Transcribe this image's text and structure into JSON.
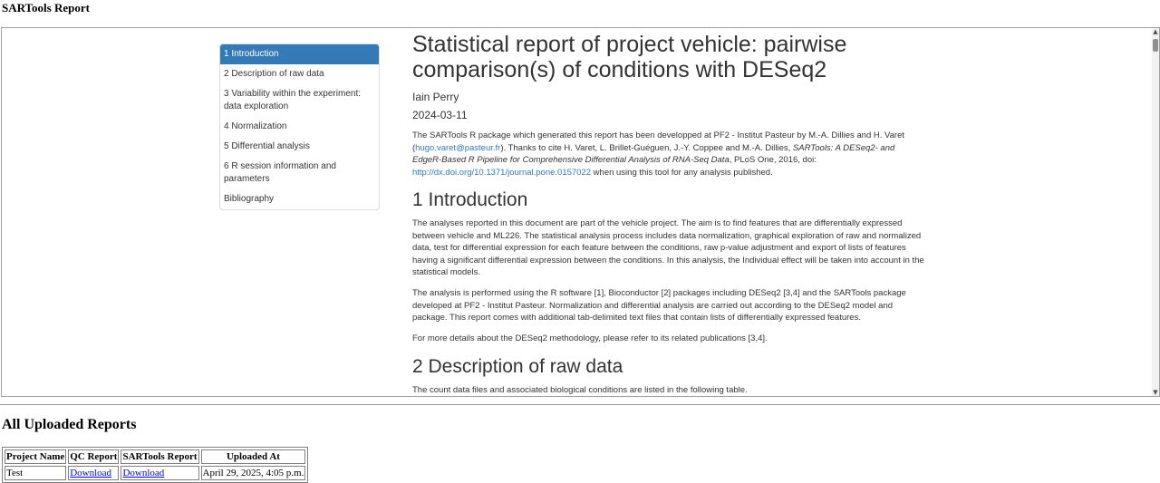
{
  "page": {
    "title": "SARTools Report"
  },
  "toc": {
    "items": [
      "1 Introduction",
      "2 Description of raw data",
      "3 Variability within the experiment: data exploration",
      "4 Normalization",
      "5 Differential analysis",
      "6 R session information and parameters",
      "Bibliography"
    ]
  },
  "report": {
    "title": "Statistical report of project vehicle: pairwise comparison(s) of conditions with DESeq2",
    "author": "Iain Perry",
    "date": "2024-03-11",
    "intro_p1": "The SARTools R package which generated this report has been developped at PF2 - Institut Pasteur by M.-A. Dillies and H. Varet (",
    "intro_email": "hugo.varet@pasteur.fr",
    "intro_p2": "). Thanks to cite H. Varet, L. Brillet-Guéguen, J.-Y. Coppee and M.-A. Dillies, ",
    "intro_italic": "SARTools: A DESeq2- and EdgeR-Based R Pipeline for Comprehensive Differential Analysis of RNA-Seq Data",
    "intro_p3": ", PLoS One, 2016, doi: ",
    "intro_doi": "http://dx.doi.org/10.1371/journal.pone.0157022",
    "intro_p4": " when using this tool for any analysis published.",
    "section1_heading": "1 Introduction",
    "section1_p1": "The analyses reported in this document are part of the vehicle project. The aim is to find features that are differentially expressed between vehicle and ML226. The statistical analysis process includes data normalization, graphical exploration of raw and normalized data, test for differential expression for each feature between the conditions, raw p-value adjustment and export of lists of features having a significant differential expression between the conditions. In this analysis, the Individual effect will be taken into account in the statistical models.",
    "section1_p2": "The analysis is performed using the R software [1], Bioconductor [2] packages including DESeq2 [3,4] and the SARTools package developed at PF2 - Institut Pasteur. Normalization and differential analysis are carried out according to the DESeq2 model and package. This report comes with additional tab-delimited text files that contain lists of differentially expressed features.",
    "section1_p3": "For more details about the DESeq2 methodology, please refer to its related publications [3,4].",
    "section2_heading": "2 Description of raw data",
    "section2_p1": "The count data files and associated biological conditions are listed in the following table."
  },
  "scrollbar": {
    "up": "▲",
    "down": "▼"
  },
  "uploaded": {
    "heading": "All Uploaded Reports",
    "headers": [
      "Project Name",
      "QC Report",
      "SARTools Report",
      "Uploaded At"
    ],
    "rows": [
      {
        "project": "Test",
        "qc": "Download",
        "sartools": "Download",
        "uploaded_at": "April 29, 2025, 4:05 p.m."
      }
    ]
  },
  "colors": {
    "accent": "#337ab7",
    "link": "#0000ee"
  }
}
